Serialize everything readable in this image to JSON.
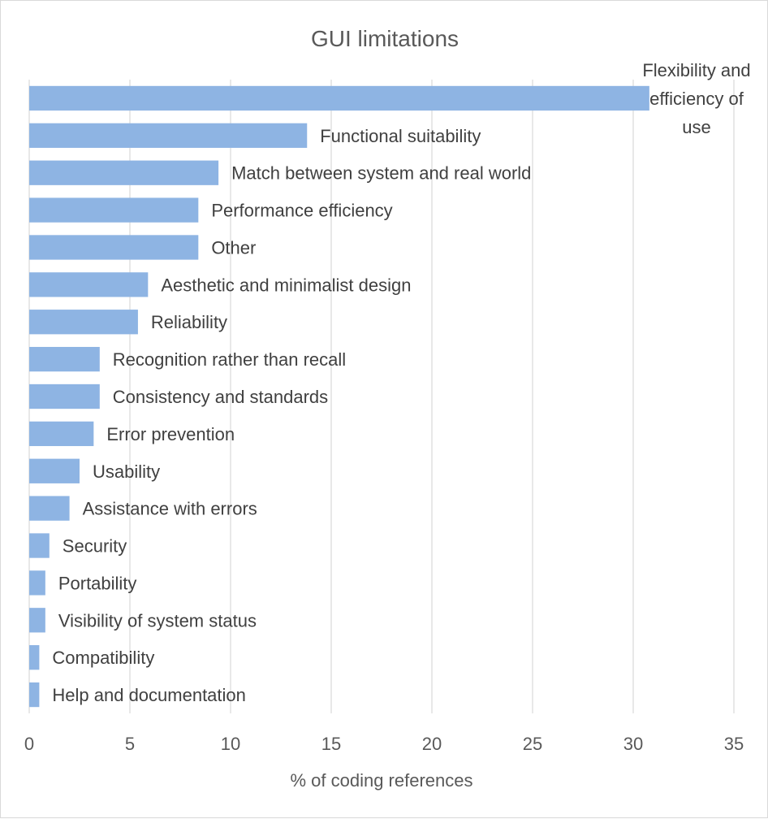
{
  "chart_data": {
    "type": "bar",
    "orientation": "horizontal",
    "title": "GUI limitations",
    "xlabel": "% of coding references",
    "ylabel": "",
    "xlim": [
      0,
      35
    ],
    "xticks": [
      0,
      5,
      10,
      15,
      20,
      25,
      30,
      35
    ],
    "grid": true,
    "categories": [
      "Flexibility and efficiency of use",
      "Functional suitability",
      "Match between system and real world",
      "Performance efficiency",
      "Other",
      "Aesthetic and minimalist design",
      "Reliability",
      "Recognition rather than recall",
      "Consistency and standards",
      "Error prevention",
      "Usability",
      "Assistance with errors",
      "Security",
      "Portability",
      "Visibility of system status",
      "Compatibility",
      "Help and documentation"
    ],
    "values": [
      30.8,
      13.8,
      9.4,
      8.4,
      8.4,
      5.9,
      5.4,
      3.5,
      3.5,
      3.2,
      2.5,
      2.0,
      1.0,
      0.8,
      0.8,
      0.5,
      0.5
    ],
    "bar_color": "#8eb4e3"
  }
}
